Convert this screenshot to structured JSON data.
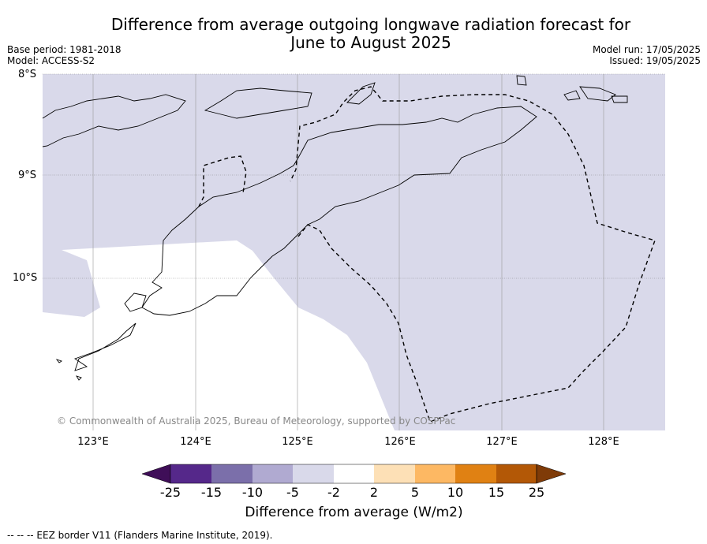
{
  "title": {
    "line1": "Difference from average outgoing longwave radiation forecast for",
    "line2": "June to August 2025"
  },
  "meta_left": {
    "base_period": "Base period: 1981-2018",
    "model": "Model: ACCESS-S2"
  },
  "meta_right": {
    "model_run": "Model run: 17/05/2025",
    "issued": "Issued: 19/05/2025"
  },
  "map": {
    "lat_labels": [
      "8°S",
      "9°S",
      "10°S"
    ],
    "lon_labels": [
      "123°E",
      "124°E",
      "125°E",
      "126°E",
      "127°E",
      "128°E"
    ],
    "copyright": "© Commonwealth of Australia 2025, Bureau of Meteorology, supported by COSPPac",
    "background_category": "-5",
    "colors": {
      "anomaly_fill": "#d9d9ea",
      "neutral": "#ffffff",
      "grid": "#888888",
      "coast": "#000000"
    }
  },
  "colorbar": {
    "ticks": [
      "-25",
      "-15",
      "-10",
      "-5",
      "-2",
      "2",
      "5",
      "10",
      "15",
      "25"
    ],
    "colors": [
      "#3f0e58",
      "#55288a",
      "#7b6faa",
      "#b0aad1",
      "#d9d9ea",
      "#ffffff",
      "#fde0b6",
      "#fdb863",
      "#e08113",
      "#b35806",
      "#7f3b08"
    ],
    "label": "Difference from average (W/m2)"
  },
  "footnote": "--  --  -- EEZ border V11 (Flanders Marine Institute, 2019)."
}
